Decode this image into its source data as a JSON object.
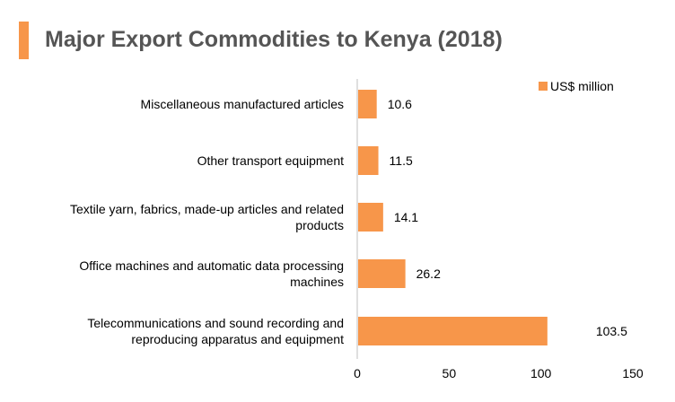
{
  "header": {
    "title": "Major Export Commodities to Kenya (2018)"
  },
  "chart_data": {
    "type": "bar",
    "orientation": "horizontal",
    "categories": [
      [
        "Miscellaneous manufactured articles"
      ],
      [
        "Other transport equipment"
      ],
      [
        "Textile yarn, fabrics, made-up articles and related",
        "products"
      ],
      [
        "Office machines and automatic data processing",
        "machines"
      ],
      [
        "Telecommunications and sound recording and",
        "reproducing apparatus and equipment"
      ]
    ],
    "series": [
      {
        "name": "US$ million",
        "values": [
          10.6,
          11.5,
          14.1,
          26.2,
          103.5
        ]
      }
    ],
    "data_labels": [
      "10.6",
      "11.5",
      "14.1",
      "26.2",
      "103.5"
    ],
    "xlim": [
      0,
      150
    ],
    "xticks": [
      0,
      50,
      100,
      150
    ],
    "xtick_labels": [
      "0",
      "50",
      "100",
      "150"
    ],
    "legend": "top-right",
    "grid": false,
    "colors": {
      "bar": "#f7964a",
      "axis": "#bfbfbf",
      "accent": "#f7964a",
      "title": "#555555"
    }
  }
}
